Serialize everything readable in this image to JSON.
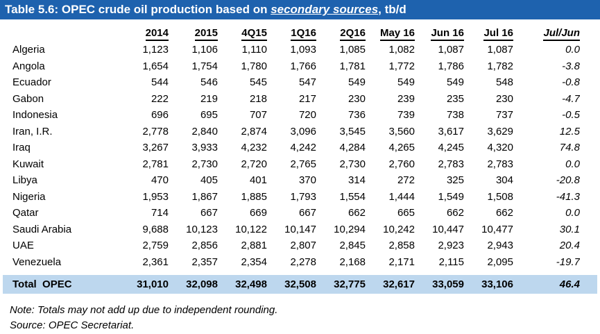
{
  "title": {
    "prefix": "Table 5.6: OPEC crude oil production based on ",
    "emphasis": "secondary sources",
    "suffix": ", tb/d"
  },
  "colors": {
    "header_bar_blue": "#1E62AE",
    "total_band_blue": "#BDD7EE"
  },
  "table": {
    "columns": [
      "2014",
      "2015",
      "4Q15",
      "1Q16",
      "2Q16",
      "May 16",
      "Jun 16",
      "Jul 16",
      "Jul/Jun"
    ],
    "rows": [
      {
        "country": "Algeria",
        "values": [
          "1,123",
          "1,106",
          "1,110",
          "1,093",
          "1,085",
          "1,082",
          "1,087",
          "1,087"
        ],
        "jul_jun": "0.0"
      },
      {
        "country": "Angola",
        "values": [
          "1,654",
          "1,754",
          "1,780",
          "1,766",
          "1,781",
          "1,772",
          "1,786",
          "1,782"
        ],
        "jul_jun": "-3.8"
      },
      {
        "country": "Ecuador",
        "values": [
          "544",
          "546",
          "545",
          "547",
          "549",
          "549",
          "549",
          "548"
        ],
        "jul_jun": "-0.8"
      },
      {
        "country": "Gabon",
        "values": [
          "222",
          "219",
          "218",
          "217",
          "230",
          "239",
          "235",
          "230"
        ],
        "jul_jun": "-4.7"
      },
      {
        "country": "Indonesia",
        "values": [
          "696",
          "695",
          "707",
          "720",
          "736",
          "739",
          "738",
          "737"
        ],
        "jul_jun": "-0.5"
      },
      {
        "country": "Iran, I.R.",
        "values": [
          "2,778",
          "2,840",
          "2,874",
          "3,096",
          "3,545",
          "3,560",
          "3,617",
          "3,629"
        ],
        "jul_jun": "12.5"
      },
      {
        "country": "Iraq",
        "values": [
          "3,267",
          "3,933",
          "4,232",
          "4,242",
          "4,284",
          "4,265",
          "4,245",
          "4,320"
        ],
        "jul_jun": "74.8"
      },
      {
        "country": "Kuwait",
        "values": [
          "2,781",
          "2,730",
          "2,720",
          "2,765",
          "2,730",
          "2,760",
          "2,783",
          "2,783"
        ],
        "jul_jun": "0.0"
      },
      {
        "country": "Libya",
        "values": [
          "470",
          "405",
          "401",
          "370",
          "314",
          "272",
          "325",
          "304"
        ],
        "jul_jun": "-20.8"
      },
      {
        "country": "Nigeria",
        "values": [
          "1,953",
          "1,867",
          "1,885",
          "1,793",
          "1,554",
          "1,444",
          "1,549",
          "1,508"
        ],
        "jul_jun": "-41.3"
      },
      {
        "country": "Qatar",
        "values": [
          "714",
          "667",
          "669",
          "667",
          "662",
          "665",
          "662",
          "662"
        ],
        "jul_jun": "0.0"
      },
      {
        "country": "Saudi Arabia",
        "values": [
          "9,688",
          "10,123",
          "10,122",
          "10,147",
          "10,294",
          "10,242",
          "10,447",
          "10,477"
        ],
        "jul_jun": "30.1"
      },
      {
        "country": "UAE",
        "values": [
          "2,759",
          "2,856",
          "2,881",
          "2,807",
          "2,845",
          "2,858",
          "2,923",
          "2,943"
        ],
        "jul_jun": "20.4"
      },
      {
        "country": "Venezuela",
        "values": [
          "2,361",
          "2,357",
          "2,354",
          "2,278",
          "2,168",
          "2,171",
          "2,115",
          "2,095"
        ],
        "jul_jun": "-19.7"
      }
    ],
    "total": {
      "label": "Total  OPEC",
      "values": [
        "31,010",
        "32,098",
        "32,498",
        "32,508",
        "32,775",
        "32,617",
        "33,059",
        "33,106"
      ],
      "jul_jun": "46.4"
    }
  },
  "footnotes": {
    "note": "Note: Totals may not add up due to independent rounding.",
    "source": "Source: OPEC Secretariat."
  }
}
